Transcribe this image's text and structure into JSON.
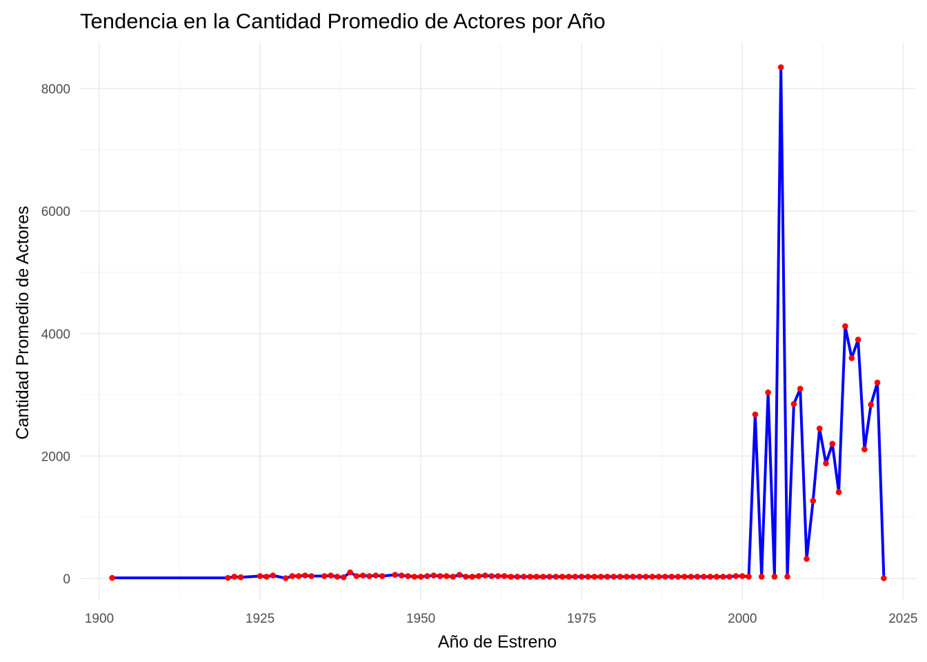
{
  "chart_data": {
    "type": "line",
    "title": "Tendencia en la Cantidad Promedio de Actores por Año",
    "xlabel": "Año de Estreno",
    "ylabel": "Cantidad Promedio de Actores",
    "xlim": [
      1897,
      2027
    ],
    "ylim": [
      -350,
      8750
    ],
    "x_ticks": [
      1900,
      1925,
      1950,
      1975,
      2000,
      2025
    ],
    "x_tick_labels": [
      "1900",
      "1925",
      "1950",
      "1975",
      "2000",
      "2025"
    ],
    "y_ticks": [
      0,
      2000,
      4000,
      6000,
      8000
    ],
    "y_tick_labels": [
      "0",
      "2000",
      "4000",
      "6000",
      "8000"
    ],
    "grid": true,
    "legend": "none",
    "line_color": "#0000ff",
    "point_color": "#ff0000",
    "series": [
      {
        "x": [
          1902,
          1920,
          1921,
          1922,
          1925,
          1926,
          1927,
          1929,
          1930,
          1931,
          1932,
          1933,
          1935,
          1936,
          1937,
          1938,
          1939,
          1940,
          1941,
          1942,
          1943,
          1944,
          1946,
          1947,
          1948,
          1949,
          1950,
          1951,
          1952,
          1953,
          1954,
          1955,
          1956,
          1957,
          1958,
          1959,
          1960,
          1961,
          1962,
          1963,
          1964,
          1965,
          1966,
          1967,
          1968,
          1969,
          1970,
          1971,
          1972,
          1973,
          1974,
          1975,
          1976,
          1977,
          1978,
          1979,
          1980,
          1981,
          1982,
          1983,
          1984,
          1985,
          1986,
          1987,
          1988,
          1989,
          1990,
          1991,
          1992,
          1993,
          1994,
          1995,
          1996,
          1997,
          1998,
          1999,
          2000,
          2001,
          2002,
          2003,
          2004,
          2005,
          2006,
          2007,
          2008,
          2009,
          2010,
          2011,
          2012,
          2013,
          2014,
          2015,
          2016,
          2017,
          2018,
          2019,
          2020,
          2021,
          2022
        ],
        "values": [
          10,
          10,
          30,
          20,
          40,
          30,
          50,
          5,
          40,
          40,
          50,
          40,
          40,
          50,
          30,
          20,
          100,
          40,
          50,
          40,
          50,
          40,
          60,
          50,
          40,
          30,
          30,
          40,
          50,
          40,
          40,
          30,
          60,
          30,
          30,
          40,
          50,
          40,
          40,
          40,
          30,
          30,
          30,
          30,
          30,
          30,
          30,
          30,
          30,
          30,
          30,
          30,
          30,
          30,
          30,
          30,
          30,
          30,
          30,
          30,
          30,
          30,
          30,
          30,
          30,
          30,
          30,
          30,
          30,
          30,
          30,
          30,
          30,
          30,
          30,
          40,
          40,
          30,
          2680,
          30,
          3040,
          30,
          8350,
          30,
          2850,
          3100,
          320,
          1270,
          2450,
          1880,
          2200,
          1410,
          4120,
          3600,
          3900,
          2110,
          2840,
          3200,
          5
        ]
      }
    ]
  }
}
